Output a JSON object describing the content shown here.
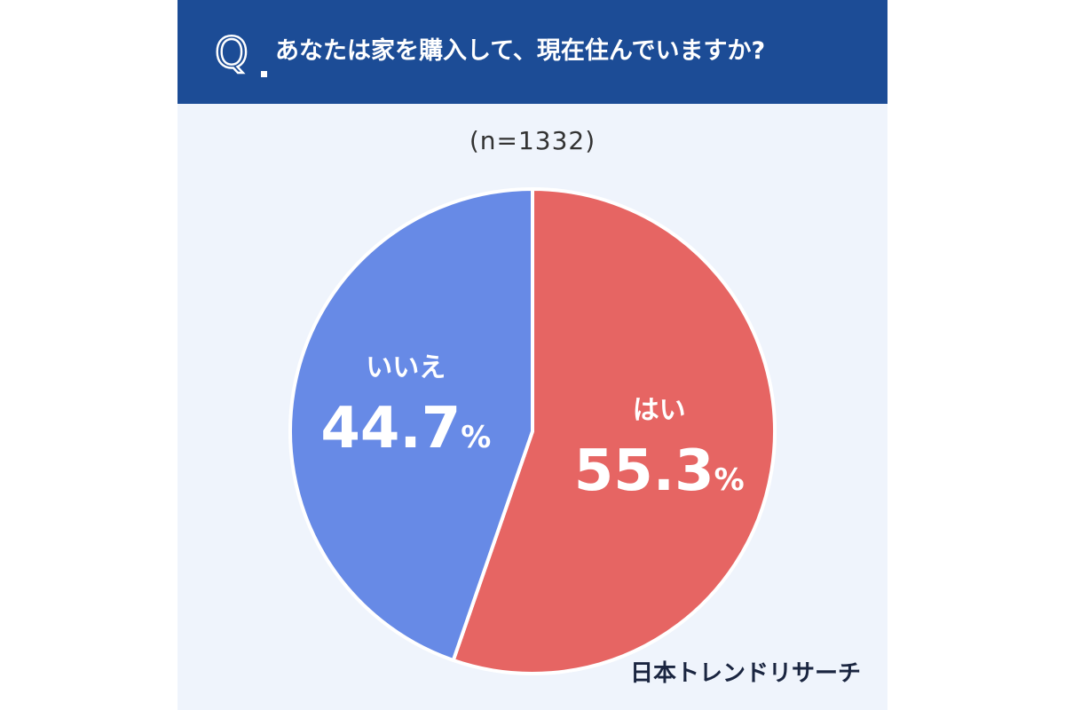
{
  "header": {
    "question_mark": "Q",
    "question": "あなたは家を購入して、現在住んでいますか?"
  },
  "sample_size": "(n=1332)",
  "brand": "日本トレンドリサーチ",
  "colors": {
    "header_bg": "#1c4c96",
    "background": "#eff4fc",
    "yes": "#e66563",
    "no": "#678ae6"
  },
  "chart_data": {
    "type": "pie",
    "title": "あなたは家を購入して、現在住んでいますか?",
    "n": 1332,
    "unit": "%",
    "slices": [
      {
        "label": "はい",
        "value": 55.3,
        "display": "55.3",
        "color": "#e66563"
      },
      {
        "label": "いいえ",
        "value": 44.7,
        "display": "44.7",
        "color": "#678ae6"
      }
    ],
    "start_angle_deg": 0,
    "direction": "clockwise"
  }
}
